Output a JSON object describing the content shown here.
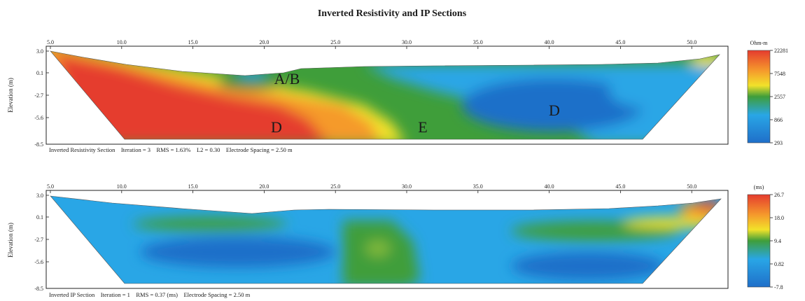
{
  "title": "Inverted Resistivity and IP Sections",
  "ylabel": "Elevation (m)",
  "x_ticks": [
    "5.0",
    "10.0",
    "15.0",
    "20.0",
    "25.0",
    "30.0",
    "35.0",
    "40.0",
    "45.0",
    "50.0"
  ],
  "y_ticks": [
    "3.0",
    "0.1",
    "-2.7",
    "-5.6",
    "-8.5"
  ],
  "resistivity": {
    "footer": "Inverted Resistivity Section    Iteration = 3    RMS = 1.63%    L2 = 0.30    Electrode Spacing = 2.50 m",
    "labels": {
      "ab": "A/B",
      "d_left": "D",
      "e": "E",
      "d_right": "D"
    },
    "colorbar": {
      "unit": "Ohm-m",
      "values": [
        "22281",
        "7548",
        "2557",
        "866",
        "293"
      ]
    }
  },
  "ip": {
    "footer": "Inverted IP Section    Iteration = 1    RMS = 0.37 (ms)    Electrode Spacing = 2.50 m",
    "colorbar": {
      "unit": "(ms)",
      "values": [
        "26.7",
        "18.0",
        "9.4",
        "0.82",
        "-7.8"
      ]
    }
  },
  "colors": {
    "red": "#e53c2e",
    "orange": "#f59a2c",
    "yellow": "#f2e22a",
    "green": "#3f9e3a",
    "cyan": "#29a6e6",
    "blue": "#1f6fc9"
  }
}
